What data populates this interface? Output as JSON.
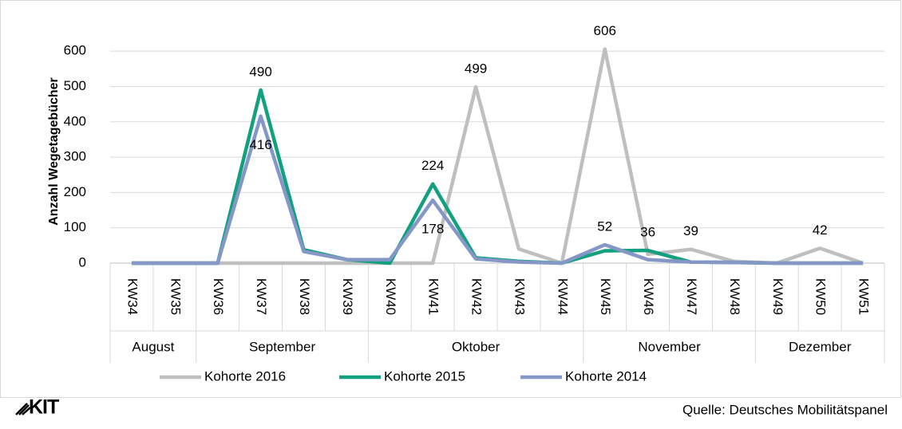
{
  "chart_data": {
    "type": "line",
    "y_label": "Anzahl Wegetagebücher",
    "categories": [
      "KW34",
      "KW35",
      "KW36",
      "KW37",
      "KW38",
      "KW39",
      "KW40",
      "KW41",
      "KW42",
      "KW43",
      "KW44",
      "KW45",
      "KW46",
      "KW47",
      "KW48",
      "KW49",
      "KW50",
      "KW51"
    ],
    "groups": [
      {
        "label": "August",
        "span": [
          0,
          1
        ]
      },
      {
        "label": "September",
        "span": [
          2,
          5
        ]
      },
      {
        "label": "Oktober",
        "span": [
          6,
          10
        ]
      },
      {
        "label": "November",
        "span": [
          11,
          14
        ]
      },
      {
        "label": "Dezember",
        "span": [
          15,
          17
        ]
      }
    ],
    "series": [
      {
        "name": "Kohorte 2016",
        "color": "#bfbfbf",
        "values": [
          0,
          0,
          0,
          0,
          0,
          0,
          0,
          0,
          499,
          40,
          0,
          606,
          25,
          39,
          5,
          0,
          42,
          0
        ],
        "value_labels": [
          null,
          null,
          null,
          null,
          null,
          null,
          null,
          null,
          "499",
          null,
          null,
          "606",
          null,
          "39",
          null,
          null,
          "42",
          null
        ]
      },
      {
        "name": "Kohorte 2015",
        "color": "#13a07f",
        "values": [
          0,
          0,
          0,
          490,
          38,
          10,
          0,
          224,
          15,
          5,
          0,
          35,
          36,
          3,
          2,
          0,
          0,
          0
        ],
        "value_labels": [
          null,
          null,
          null,
          "490",
          null,
          null,
          null,
          "224",
          null,
          null,
          null,
          null,
          "36",
          null,
          null,
          null,
          null,
          null
        ]
      },
      {
        "name": "Kohorte 2014",
        "color": "#8497c7",
        "values": [
          0,
          0,
          0,
          416,
          33,
          10,
          10,
          178,
          12,
          3,
          0,
          52,
          10,
          3,
          2,
          0,
          0,
          0
        ],
        "value_labels": [
          null,
          null,
          null,
          "416",
          null,
          null,
          null,
          "178",
          null,
          null,
          null,
          "52",
          null,
          null,
          null,
          null,
          null,
          null
        ]
      }
    ],
    "ylim": [
      0,
      650
    ],
    "yticks": [
      0,
      100,
      200,
      300,
      400,
      500,
      600
    ],
    "grid": true,
    "legend": "bottom",
    "source": "Quelle: Deutsches Mobilitätspanel",
    "logo": "KIT"
  }
}
